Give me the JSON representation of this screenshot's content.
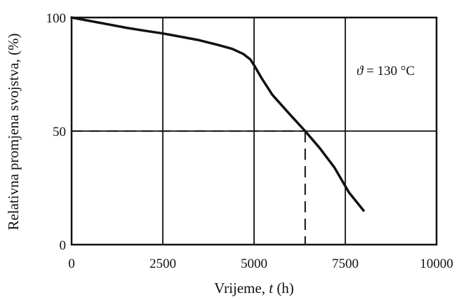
{
  "chart_data": {
    "type": "line",
    "title": "",
    "xlabel_prefix": "Vrijeme, ",
    "xlabel_var": "t",
    "xlabel_suffix": " (h)",
    "ylabel": "Relativna promjena svojstva, (%)",
    "xlim": [
      0,
      10000
    ],
    "ylim": [
      0,
      100
    ],
    "x_ticks": [
      "0",
      "2500",
      "5000",
      "7500",
      "10000"
    ],
    "y_ticks": [
      "0",
      "50",
      "100"
    ],
    "grid": true,
    "annotation": {
      "symbol": "ϑ",
      "text": " = 130 °C"
    },
    "series": [
      {
        "x": [
          0,
          500,
          1000,
          1500,
          2000,
          2500,
          3000,
          3500,
          4000,
          4400,
          4700,
          4900,
          5000,
          5200,
          5500,
          6000,
          6400,
          6800,
          7200,
          7600,
          8000
        ],
        "y": [
          100,
          98.5,
          97,
          95.5,
          94.2,
          93,
          91.5,
          90,
          88,
          86.2,
          84,
          81.5,
          79,
          73.5,
          66,
          57,
          50,
          42.5,
          34,
          23,
          15
        ]
      }
    ],
    "reference_lines": {
      "y_value": 50,
      "x_value": 6400
    },
    "colors": {
      "line": "#111111",
      "grid": "#111111"
    }
  }
}
